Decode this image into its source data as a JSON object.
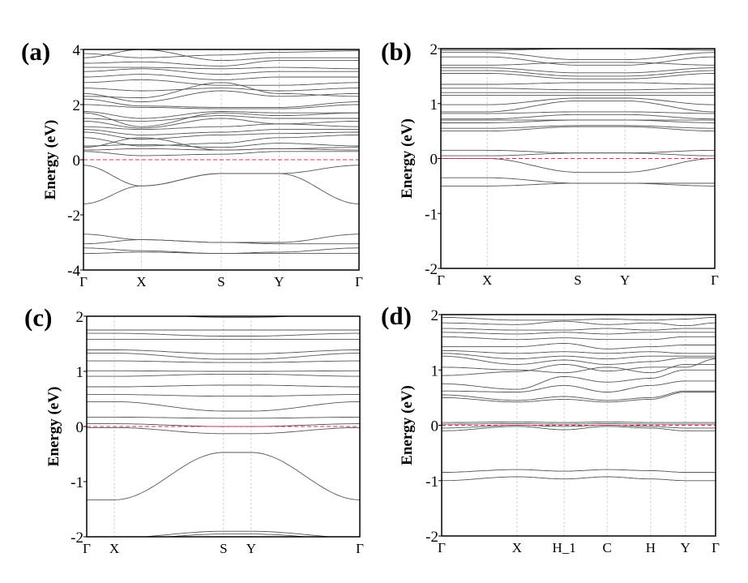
{
  "colors": {
    "band": "#555555",
    "fermi": "#e0303a",
    "frame": "#000000",
    "kline": "#c8c8c8"
  },
  "chart_data": [
    {
      "type": "line",
      "panel_label": "(a)",
      "ylabel": "Energy (eV)",
      "xlabel": "",
      "ylim": [
        -4,
        4
      ],
      "yticks": [
        -4,
        -2,
        0,
        2,
        4
      ],
      "kpoints": [
        "Γ",
        "X",
        "S",
        "Y",
        "Γ"
      ],
      "kpos": [
        0,
        0.21,
        0.5,
        0.71,
        1
      ],
      "fermi_level": 0,
      "bands": [
        [
          -3.4,
          -3.35,
          -3.4,
          -3.4,
          -3.4
        ],
        [
          -3.2,
          -3.3,
          -3.4,
          -3.35,
          -3.2
        ],
        [
          -3.05,
          -2.9,
          -3.0,
          -3.05,
          -3.05
        ],
        [
          -2.7,
          -2.9,
          -3.0,
          -3.0,
          -2.7
        ],
        [
          -1.6,
          -0.95,
          -0.5,
          -0.5,
          -1.6
        ],
        [
          -0.2,
          -0.95,
          -0.5,
          -0.5,
          -0.2
        ],
        [
          0.3,
          0.15,
          0.2,
          0.3,
          0.3
        ],
        [
          0.35,
          0.4,
          0.35,
          0.4,
          0.35
        ],
        [
          0.45,
          0.8,
          0.35,
          0.4,
          0.45
        ],
        [
          0.5,
          0.55,
          0.45,
          0.6,
          0.5
        ],
        [
          0.8,
          0.5,
          0.6,
          0.8,
          0.9
        ],
        [
          1.0,
          0.75,
          0.9,
          0.95,
          1.0
        ],
        [
          1.1,
          0.9,
          1.0,
          1.1,
          1.1
        ],
        [
          1.2,
          1.1,
          1.2,
          1.3,
          1.2
        ],
        [
          1.4,
          1.15,
          1.5,
          1.3,
          1.4
        ],
        [
          1.5,
          1.4,
          1.6,
          1.5,
          1.5
        ],
        [
          1.7,
          1.2,
          1.7,
          1.6,
          1.7
        ],
        [
          1.75,
          1.5,
          1.75,
          1.7,
          1.7
        ],
        [
          2.0,
          1.9,
          1.85,
          1.85,
          2.0
        ],
        [
          2.2,
          1.95,
          1.9,
          1.9,
          2.1
        ],
        [
          2.4,
          2.1,
          2.5,
          2.3,
          2.4
        ],
        [
          2.3,
          2.25,
          2.8,
          2.4,
          2.3
        ],
        [
          2.6,
          2.5,
          2.6,
          2.5,
          2.6
        ],
        [
          2.8,
          2.9,
          2.7,
          2.7,
          2.8
        ],
        [
          3.0,
          3.1,
          2.9,
          3.0,
          3.0
        ],
        [
          3.2,
          3.3,
          3.1,
          3.2,
          3.2
        ],
        [
          3.35,
          3.35,
          3.3,
          3.35,
          3.3
        ],
        [
          3.5,
          3.55,
          3.4,
          3.6,
          3.6
        ],
        [
          3.7,
          4.0,
          3.6,
          3.7,
          3.7
        ],
        [
          3.85,
          3.7,
          3.8,
          3.9,
          3.95
        ]
      ]
    },
    {
      "type": "line",
      "panel_label": "(b)",
      "ylabel": "Energy (eV)",
      "xlabel": "",
      "ylim": [
        -2,
        2
      ],
      "yticks": [
        -2,
        -1,
        0,
        1,
        2
      ],
      "kpoints": [
        "Γ",
        "X",
        "S",
        "Y",
        "Γ"
      ],
      "kpos": [
        0,
        0.169,
        0.5,
        0.672,
        1
      ],
      "fermi_level": 0,
      "bands": [
        [
          -0.5,
          -0.5,
          -0.45,
          -0.45,
          -0.5
        ],
        [
          -0.35,
          -0.35,
          -0.45,
          -0.45,
          -0.45
        ],
        [
          0,
          0,
          -0.25,
          -0.25,
          0
        ],
        [
          0.05,
          0.05,
          0.1,
          0.1,
          0.05
        ],
        [
          0.15,
          0.15,
          0.1,
          0.1,
          0.15
        ],
        [
          0.5,
          0.5,
          0.58,
          0.58,
          0.5
        ],
        [
          0.55,
          0.55,
          0.6,
          0.6,
          0.55
        ],
        [
          0.65,
          0.65,
          0.7,
          0.7,
          0.65
        ],
        [
          0.7,
          0.7,
          0.7,
          0.7,
          0.7
        ],
        [
          0.72,
          0.72,
          0.8,
          0.8,
          0.72
        ],
        [
          0.82,
          0.82,
          0.85,
          0.85,
          0.82
        ],
        [
          0.85,
          0.85,
          1.05,
          1.05,
          0.85
        ],
        [
          0.98,
          0.98,
          1.1,
          1.1,
          0.98
        ],
        [
          1.15,
          1.15,
          1.15,
          1.15,
          1.15
        ],
        [
          1.2,
          1.2,
          1.2,
          1.2,
          1.2
        ],
        [
          1.28,
          1.28,
          1.25,
          1.25,
          1.28
        ],
        [
          1.35,
          1.35,
          1.38,
          1.38,
          1.35
        ],
        [
          1.55,
          1.55,
          1.45,
          1.45,
          1.55
        ],
        [
          1.6,
          1.6,
          1.5,
          1.5,
          1.6
        ],
        [
          1.65,
          1.65,
          1.56,
          1.56,
          1.65
        ],
        [
          1.7,
          1.7,
          1.75,
          1.75,
          1.7
        ],
        [
          1.85,
          1.85,
          1.7,
          1.7,
          1.85
        ],
        [
          1.93,
          1.93,
          1.8,
          1.8,
          1.93
        ],
        [
          1.97,
          1.97,
          2.0,
          2.0,
          1.97
        ]
      ]
    },
    {
      "type": "line",
      "panel_label": "(c)",
      "ylabel": "Energy (eV)",
      "xlabel": "",
      "ylim": [
        -2,
        2
      ],
      "yticks": [
        -2,
        -1,
        0,
        1,
        2
      ],
      "kpoints": [
        "Γ",
        "X",
        "S",
        "Y",
        "Γ"
      ],
      "kpos": [
        0,
        0.101,
        0.501,
        0.602,
        1
      ],
      "fermi_level": 0,
      "bands": [
        [
          -2.02,
          -2.02,
          -1.9,
          -1.9,
          -2.02
        ],
        [
          -2.05,
          -2.05,
          -1.95,
          -1.95,
          -2.05
        ],
        [
          -1.33,
          -1.33,
          -0.47,
          -0.47,
          -1.33
        ],
        [
          -0.02,
          -0.02,
          -0.13,
          -0.13,
          -0.02
        ],
        [
          0.05,
          0.05,
          0.0,
          0.0,
          0.05
        ],
        [
          0.17,
          0.17,
          0.15,
          0.15,
          0.17
        ],
        [
          0.45,
          0.45,
          0.28,
          0.28,
          0.45
        ],
        [
          0.58,
          0.58,
          0.55,
          0.55,
          0.58
        ],
        [
          0.72,
          0.72,
          0.75,
          0.75,
          0.72
        ],
        [
          0.91,
          0.91,
          0.95,
          0.95,
          0.91
        ],
        [
          1.01,
          1.01,
          1.0,
          1.0,
          1.01
        ],
        [
          1.19,
          1.19,
          1.16,
          1.16,
          1.19
        ],
        [
          1.33,
          1.33,
          1.22,
          1.22,
          1.33
        ],
        [
          1.39,
          1.39,
          1.32,
          1.32,
          1.39
        ],
        [
          1.58,
          1.58,
          1.58,
          1.58,
          1.58
        ],
        [
          1.69,
          1.69,
          1.64,
          1.64,
          1.69
        ],
        [
          1.75,
          1.75,
          1.75,
          1.75,
          1.75
        ],
        [
          2.05,
          2.05,
          1.98,
          1.98,
          2.05
        ]
      ]
    },
    {
      "type": "line",
      "panel_label": "(d)",
      "ylabel": "Energy (eV)",
      "xlabel": "",
      "ylim": [
        -2,
        2
      ],
      "yticks": [
        -2,
        -1,
        0,
        1,
        2
      ],
      "kpoints": [
        "Γ",
        "X",
        "H_1",
        "C",
        "H",
        "Y",
        "Γ"
      ],
      "kpos": [
        0,
        0.275,
        0.447,
        0.604,
        0.763,
        0.89,
        1
      ],
      "fermi_level": 0,
      "bands": [
        [
          -1.0,
          -0.93,
          -0.97,
          -0.93,
          -0.97,
          -1.0,
          -1.0
        ],
        [
          -0.85,
          -0.8,
          -0.83,
          -0.8,
          -0.82,
          -0.85,
          -0.85
        ],
        [
          -0.1,
          -0.02,
          -0.08,
          -0.02,
          -0.05,
          -0.1,
          -0.1
        ],
        [
          -0.05,
          0,
          -0.02,
          0,
          -0.02,
          -0.05,
          -0.05
        ],
        [
          0.02,
          0.03,
          0.02,
          0.03,
          0.02,
          0.02,
          0.02
        ],
        [
          0.05,
          0.06,
          0.05,
          0.06,
          0.05,
          0.05,
          0.05
        ],
        [
          0.5,
          0.42,
          0.47,
          0.42,
          0.47,
          0.6,
          0.6
        ],
        [
          0.55,
          0.45,
          0.52,
          0.45,
          0.5,
          0.62,
          0.62
        ],
        [
          0.62,
          0.6,
          0.72,
          0.6,
          0.72,
          0.8,
          0.8
        ],
        [
          0.75,
          0.65,
          0.88,
          0.78,
          0.85,
          1.0,
          1.0
        ],
        [
          1.05,
          1.0,
          0.95,
          1.05,
          0.95,
          1.1,
          1.1
        ],
        [
          0.9,
          0.97,
          1.1,
          0.98,
          1.05,
          1.05,
          1.2
        ],
        [
          1.25,
          1.1,
          1.18,
          1.1,
          1.15,
          1.22,
          1.22
        ],
        [
          1.3,
          1.2,
          1.25,
          1.2,
          1.25,
          1.25,
          1.25
        ],
        [
          1.35,
          1.3,
          1.33,
          1.3,
          1.33,
          1.3,
          1.3
        ],
        [
          1.42,
          1.42,
          1.48,
          1.38,
          1.42,
          1.45,
          1.45
        ],
        [
          1.6,
          1.55,
          1.58,
          1.55,
          1.55,
          1.6,
          1.6
        ],
        [
          1.68,
          1.65,
          1.68,
          1.65,
          1.68,
          1.68,
          1.68
        ],
        [
          1.75,
          1.72,
          1.72,
          1.75,
          1.72,
          1.75,
          1.75
        ],
        [
          1.85,
          1.82,
          1.88,
          1.82,
          1.85,
          1.8,
          1.85
        ],
        [
          1.95,
          1.9,
          1.9,
          1.92,
          1.9,
          1.92,
          1.95
        ]
      ]
    }
  ]
}
